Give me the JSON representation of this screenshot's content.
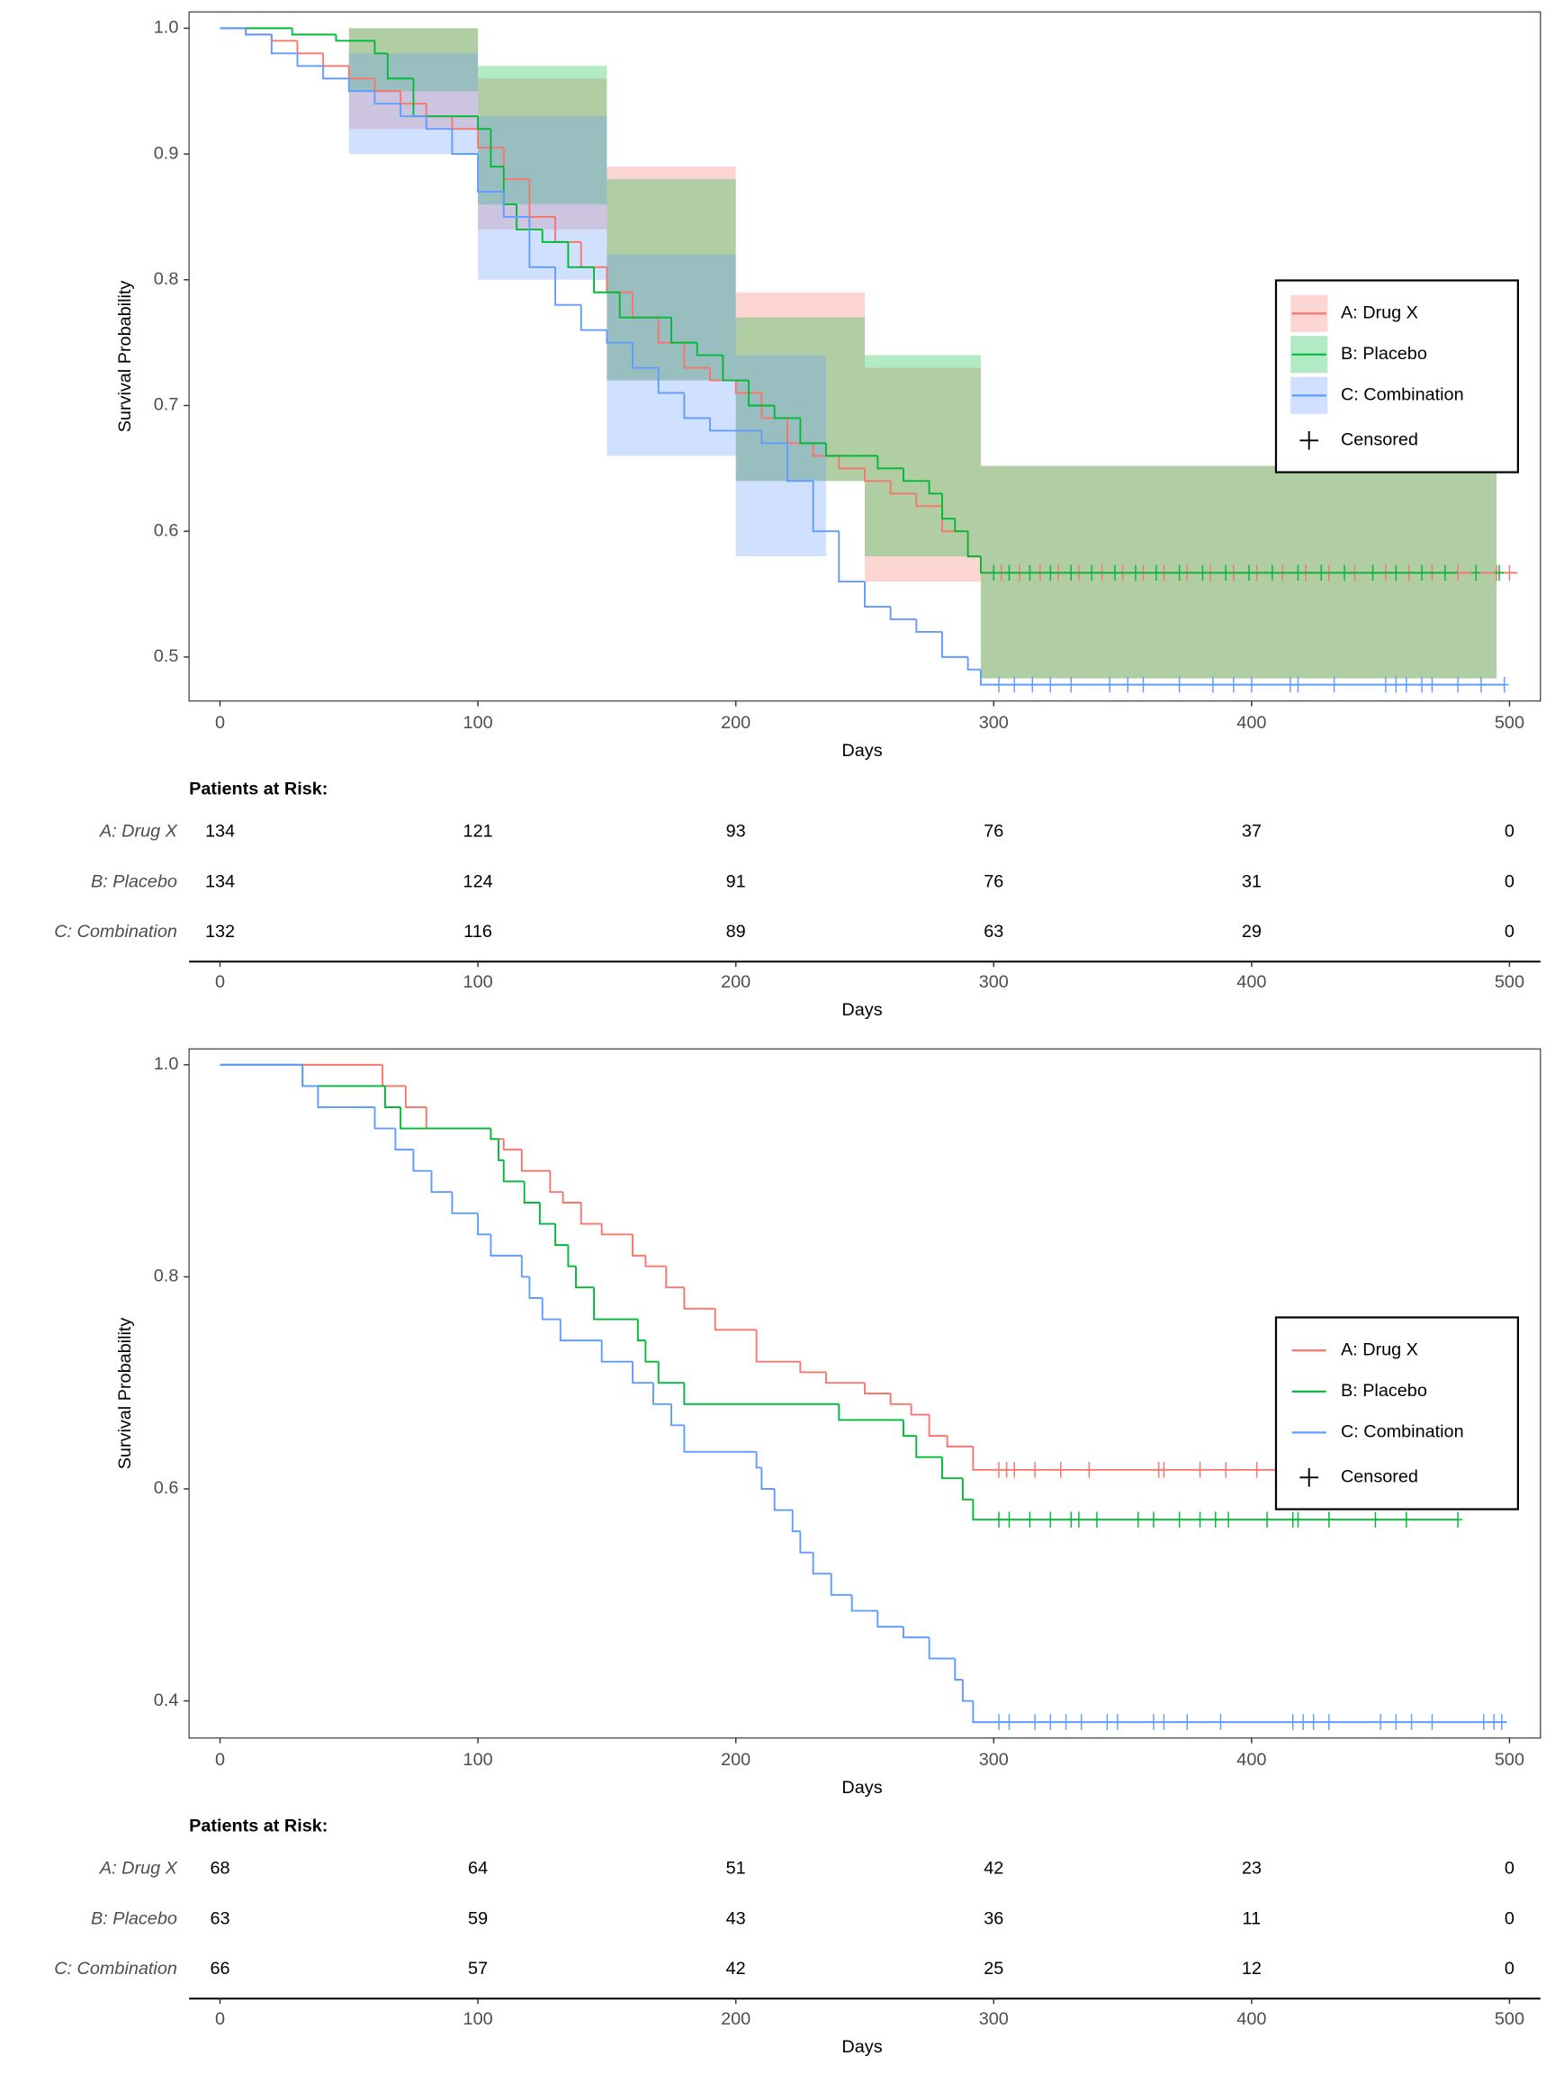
{
  "chart_data": [
    {
      "type": "line",
      "step": true,
      "xlabel": "Days",
      "ylabel": "Survival Probability",
      "xlim": [
        -12,
        512
      ],
      "ylim": [
        0.465,
        1.013
      ],
      "xticks": [
        0,
        100,
        200,
        300,
        400,
        500
      ],
      "yticks": [
        0.5,
        0.6,
        0.7,
        0.8,
        0.9,
        {
          "value": 1,
          "label": "1.0"
        }
      ],
      "legend": "right",
      "censor_label": "Censored",
      "series": [
        {
          "name": "A: Drug X",
          "color": "#F8766D",
          "x": [
            0,
            10,
            20,
            30,
            40,
            50,
            60,
            70,
            80,
            90,
            100,
            110,
            120,
            130,
            140,
            150,
            160,
            170,
            180,
            190,
            200,
            210,
            220,
            230,
            240,
            250,
            260,
            270,
            280,
            290,
            295,
            503
          ],
          "values": [
            1,
            0.995,
            0.99,
            0.98,
            0.97,
            0.96,
            0.95,
            0.94,
            0.93,
            0.92,
            0.905,
            0.88,
            0.85,
            0.83,
            0.81,
            0.79,
            0.77,
            0.75,
            0.73,
            0.72,
            0.71,
            0.69,
            0.67,
            0.66,
            0.65,
            0.64,
            0.63,
            0.62,
            0.6,
            0.58,
            0.567,
            0.567
          ],
          "band": {
            "x": [
              0,
              50,
              100,
              150,
              200,
              250,
              295,
              495
            ],
            "lower": [
              1,
              0.92,
              0.84,
              0.72,
              0.64,
              0.56,
              0.483,
              0.483
            ],
            "upper": [
              1,
              1,
              0.96,
              0.89,
              0.79,
              0.73,
              0.652,
              0.652
            ]
          },
          "censored": [
            303,
            310,
            318,
            325,
            333,
            342,
            350,
            358,
            366,
            375,
            384,
            393,
            402,
            412,
            421,
            430,
            440,
            452,
            461,
            470,
            480,
            495,
            500
          ]
        },
        {
          "name": "B: Placebo",
          "color": "#00BA38",
          "x": [
            0,
            28,
            45,
            60,
            65,
            75,
            100,
            105,
            110,
            115,
            125,
            135,
            145,
            155,
            165,
            175,
            185,
            195,
            205,
            215,
            225,
            235,
            245,
            255,
            265,
            275,
            280,
            285,
            290,
            295,
            480
          ],
          "values": [
            1,
            0.995,
            0.99,
            0.98,
            0.96,
            0.93,
            0.92,
            0.89,
            0.86,
            0.84,
            0.83,
            0.81,
            0.79,
            0.77,
            0.77,
            0.75,
            0.74,
            0.72,
            0.7,
            0.69,
            0.67,
            0.66,
            0.66,
            0.65,
            0.64,
            0.63,
            0.61,
            0.6,
            0.58,
            0.567,
            0.567
          ],
          "band": {
            "x": [
              0,
              50,
              100,
              150,
              200,
              250,
              295,
              495
            ],
            "lower": [
              1,
              0.95,
              0.86,
              0.72,
              0.64,
              0.58,
              0.483,
              0.483
            ],
            "upper": [
              1,
              1,
              0.97,
              0.88,
              0.77,
              0.74,
              0.652,
              0.652
            ]
          },
          "censored": [
            300,
            306,
            314,
            322,
            330,
            338,
            347,
            355,
            363,
            372,
            381,
            390,
            399,
            408,
            418,
            427,
            436,
            447,
            456,
            466,
            475,
            487,
            496
          ]
        },
        {
          "name": "C: Combination",
          "color": "#619CFF",
          "x": [
            0,
            10,
            20,
            30,
            40,
            50,
            60,
            70,
            80,
            90,
            100,
            110,
            120,
            130,
            140,
            150,
            160,
            170,
            180,
            190,
            200,
            210,
            220,
            230,
            240,
            250,
            260,
            270,
            280,
            290,
            295,
            498
          ],
          "values": [
            1,
            0.995,
            0.98,
            0.97,
            0.96,
            0.95,
            0.94,
            0.93,
            0.92,
            0.9,
            0.87,
            0.85,
            0.81,
            0.78,
            0.76,
            0.75,
            0.73,
            0.71,
            0.69,
            0.68,
            0.68,
            0.67,
            0.64,
            0.6,
            0.56,
            0.54,
            0.53,
            0.52,
            0.5,
            0.49,
            0.478,
            0.478
          ],
          "band": {
            "x": [
              0,
              50,
              100,
              150,
              200,
              235
            ],
            "lower": [
              1,
              0.9,
              0.8,
              0.66,
              0.58,
              0.483
            ],
            "upper": [
              1,
              0.98,
              0.93,
              0.82,
              0.74,
              0.69
            ]
          },
          "censored": [
            302,
            308,
            315,
            322,
            330,
            345,
            352,
            358,
            372,
            385,
            393,
            400,
            415,
            418,
            432,
            452,
            456,
            460,
            466,
            470,
            480,
            489,
            498
          ]
        }
      ],
      "risk_table": {
        "title": "Patients at Risk:",
        "times": [
          0,
          100,
          200,
          300,
          400,
          500
        ],
        "groups": [
          "A: Drug X",
          "B: Placebo",
          "C: Combination"
        ],
        "counts": [
          [
            134,
            121,
            93,
            76,
            37,
            0
          ],
          [
            134,
            124,
            91,
            76,
            31,
            0
          ],
          [
            132,
            116,
            89,
            63,
            29,
            0
          ]
        ]
      }
    },
    {
      "type": "line",
      "step": true,
      "xlabel": "Days",
      "ylabel": "Survival Probability",
      "xlim": [
        -12,
        512
      ],
      "ylim": [
        0.365,
        1.015
      ],
      "xticks": [
        0,
        100,
        200,
        300,
        400,
        500
      ],
      "yticks": [
        0.4,
        0.6,
        0.8,
        {
          "value": 1,
          "label": "1.0"
        }
      ],
      "legend": "right",
      "censor_label": "Censored",
      "series": [
        {
          "name": "A: Drug X",
          "color": "#F8766D",
          "x": [
            0,
            63,
            72,
            80,
            105,
            110,
            117,
            128,
            133,
            140,
            148,
            160,
            165,
            173,
            180,
            192,
            208,
            225,
            235,
            250,
            260,
            268,
            275,
            282,
            292,
            480
          ],
          "values": [
            1,
            0.98,
            0.96,
            0.94,
            0.93,
            0.92,
            0.9,
            0.88,
            0.87,
            0.85,
            0.84,
            0.82,
            0.81,
            0.79,
            0.77,
            0.75,
            0.72,
            0.71,
            0.7,
            0.69,
            0.68,
            0.67,
            0.65,
            0.64,
            0.618,
            0.618
          ],
          "censored": [
            302,
            305,
            308,
            316,
            326,
            337,
            364,
            366,
            380,
            390,
            402,
            410
          ]
        },
        {
          "name": "B: Placebo",
          "color": "#00BA38",
          "x": [
            0,
            32,
            64,
            70,
            105,
            108,
            110,
            118,
            124,
            130,
            135,
            138,
            145,
            162,
            165,
            170,
            180,
            240,
            265,
            270,
            280,
            288,
            292,
            480
          ],
          "values": [
            1,
            0.98,
            0.96,
            0.94,
            0.93,
            0.91,
            0.89,
            0.87,
            0.85,
            0.83,
            0.81,
            0.79,
            0.76,
            0.74,
            0.72,
            0.7,
            0.68,
            0.665,
            0.65,
            0.63,
            0.61,
            0.59,
            0.571,
            0.571
          ],
          "censored": [
            302,
            306,
            314,
            322,
            330,
            333,
            340,
            356,
            362,
            372,
            380,
            386,
            391,
            406,
            416,
            418,
            430,
            448,
            460,
            480
          ]
        },
        {
          "name": "C: Combination",
          "color": "#619CFF",
          "x": [
            0,
            32,
            38,
            60,
            68,
            75,
            82,
            90,
            100,
            105,
            117,
            120,
            125,
            132,
            148,
            160,
            168,
            175,
            180,
            208,
            210,
            215,
            222,
            225,
            230,
            237,
            245,
            255,
            265,
            275,
            285,
            288,
            292,
            499
          ],
          "values": [
            1,
            0.98,
            0.96,
            0.94,
            0.92,
            0.9,
            0.88,
            0.86,
            0.84,
            0.82,
            0.8,
            0.78,
            0.76,
            0.74,
            0.72,
            0.7,
            0.68,
            0.66,
            0.635,
            0.62,
            0.6,
            0.58,
            0.56,
            0.54,
            0.52,
            0.5,
            0.485,
            0.47,
            0.46,
            0.44,
            0.42,
            0.4,
            0.38,
            0.38
          ],
          "censored": [
            302,
            306,
            316,
            322,
            328,
            334,
            344,
            348,
            362,
            366,
            375,
            388,
            416,
            420,
            424,
            430,
            450,
            456,
            462,
            470,
            490,
            494,
            497
          ]
        }
      ],
      "risk_table": {
        "title": "Patients at Risk:",
        "times": [
          0,
          100,
          200,
          300,
          400,
          500
        ],
        "groups": [
          "A: Drug X",
          "B: Placebo",
          "C: Combination"
        ],
        "counts": [
          [
            68,
            64,
            51,
            42,
            23,
            0
          ],
          [
            63,
            59,
            43,
            36,
            11,
            0
          ],
          [
            66,
            57,
            42,
            25,
            12,
            0
          ]
        ]
      }
    }
  ]
}
